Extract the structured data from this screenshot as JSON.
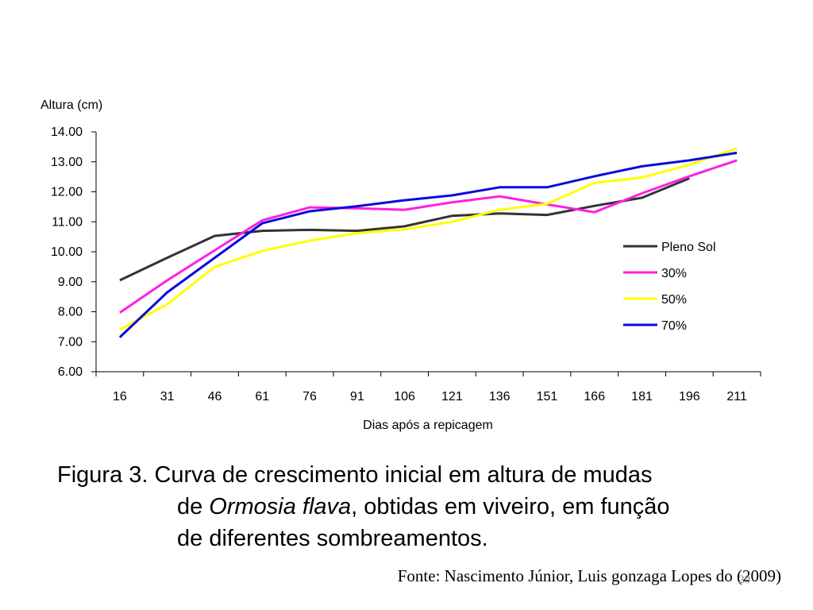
{
  "chart_data": {
    "type": "line",
    "ylabel": "Altura (cm)",
    "xlabel": "Dias após a repicagem",
    "x": [
      16,
      31,
      46,
      61,
      76,
      91,
      106,
      121,
      136,
      151,
      166,
      181,
      196,
      211
    ],
    "ylim": [
      6,
      14
    ],
    "yticks": [
      "6.00",
      "7.00",
      "8.00",
      "9.00",
      "10.00",
      "11.00",
      "12.00",
      "13.00",
      "14.00"
    ],
    "legend_position": "right",
    "grid": false,
    "series": [
      {
        "name": "Pleno Sol",
        "color": "#333333",
        "values": [
          9.05,
          9.8,
          10.53,
          10.7,
          10.73,
          10.7,
          10.85,
          11.2,
          11.28,
          11.23,
          11.53,
          11.8,
          12.45,
          null
        ]
      },
      {
        "name": "30%",
        "color": "#ff1fe0",
        "values": [
          7.97,
          9.05,
          10.05,
          11.05,
          11.48,
          11.45,
          11.4,
          11.65,
          11.85,
          11.58,
          11.32,
          11.95,
          12.52,
          13.05
        ]
      },
      {
        "name": "50%",
        "color": "#ffff00",
        "values": [
          7.4,
          8.25,
          9.5,
          10.03,
          10.37,
          10.62,
          10.75,
          11.0,
          11.4,
          11.6,
          12.3,
          12.48,
          12.9,
          13.45
        ]
      },
      {
        "name": "70%",
        "color": "#0a0adc",
        "values": [
          7.15,
          8.65,
          9.8,
          10.95,
          11.35,
          11.52,
          11.72,
          11.88,
          12.15,
          12.15,
          12.52,
          12.85,
          13.05,
          13.3
        ]
      }
    ]
  },
  "caption": {
    "prefix": "Figura 3.",
    "line1": "Curva de crescimento inicial em altura de mudas",
    "line2_start": "de",
    "species": "Ormosia flava",
    "line2_end": ", obtidas em viveiro, em função",
    "line3": "de diferentes sombreamentos."
  },
  "source": "Fonte: Nascimento Júnior, Luis gonzaga Lopes do (2009)",
  "page_number": "20"
}
